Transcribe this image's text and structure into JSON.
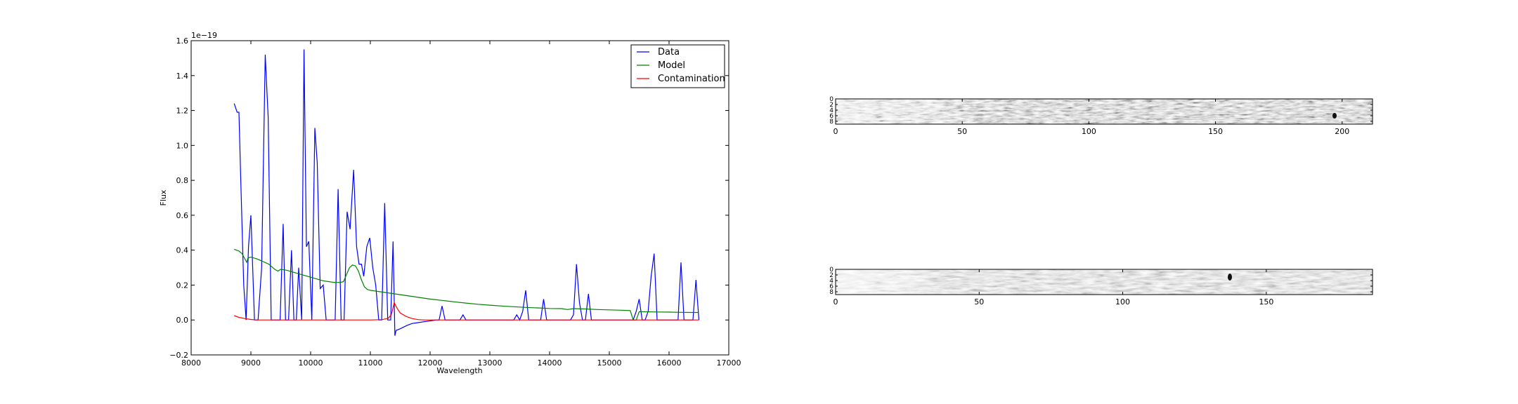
{
  "chart_data": [
    {
      "type": "line",
      "title": "",
      "xlabel": "Wavelength",
      "ylabel": "Flux",
      "y_offset_text": "1e−19",
      "xlim": [
        8000,
        17000
      ],
      "ylim": [
        -0.2,
        1.6
      ],
      "xticks": [
        8000,
        9000,
        10000,
        11000,
        12000,
        13000,
        14000,
        15000,
        16000,
        17000
      ],
      "xtick_labels": [
        "8000",
        "9000",
        "10000",
        "11000",
        "12000",
        "13000",
        "14000",
        "15000",
        "16000",
        "17000"
      ],
      "yticks": [
        -0.2,
        0.0,
        0.2,
        0.4,
        0.6,
        0.8,
        1.0,
        1.2,
        1.4,
        1.6
      ],
      "ytick_labels": [
        "−0.2",
        "0.0",
        "0.2",
        "0.4",
        "0.6",
        "0.8",
        "1.0",
        "1.2",
        "1.4",
        "1.6"
      ],
      "grid": false,
      "legend_placement": "top-right",
      "series": [
        {
          "name": "Data",
          "color": "#0000ff",
          "x": [
            8720,
            8770,
            8800,
            8830,
            8880,
            8920,
            8960,
            9000,
            9060,
            9120,
            9180,
            9240,
            9290,
            9340,
            9400,
            9450,
            9490,
            9540,
            9580,
            9630,
            9680,
            9720,
            9760,
            9800,
            9850,
            9890,
            9930,
            9970,
            10020,
            10070,
            10110,
            10160,
            10210,
            10260,
            10310,
            10360,
            10410,
            10460,
            10510,
            10560,
            10610,
            10660,
            10720,
            10770,
            10810,
            10850,
            10890,
            10940,
            10990,
            11040,
            11090,
            11140,
            11190,
            11240,
            11290,
            11340,
            11380,
            11410,
            11430,
            11500,
            11560,
            11620,
            11700,
            11800,
            11900,
            12000,
            12100,
            12150,
            12200,
            12250,
            12500,
            12550,
            12600,
            13000,
            13400,
            13450,
            13500,
            13550,
            13600,
            13650,
            13700,
            13850,
            13900,
            13950,
            14000,
            14300,
            14350,
            14400,
            14450,
            14500,
            14550,
            14600,
            14650,
            14700,
            15350,
            15400,
            15450,
            15500,
            15550,
            15600,
            15650,
            15700,
            15750,
            15800,
            15850,
            16150,
            16200,
            16250,
            16300,
            16400,
            16450,
            16500
          ],
          "y": [
            1.24,
            1.19,
            1.19,
            0.8,
            0.2,
            0.0,
            0.42,
            0.6,
            0.0,
            0.0,
            0.3,
            1.52,
            1.16,
            0.0,
            0.0,
            0.0,
            0.0,
            0.55,
            0.0,
            0.0,
            0.4,
            0.0,
            0.0,
            0.3,
            0.0,
            1.55,
            0.42,
            0.45,
            0.0,
            1.1,
            0.9,
            0.18,
            0.2,
            0.0,
            0.0,
            0.0,
            0.0,
            0.75,
            0.0,
            0.0,
            0.62,
            0.52,
            0.86,
            0.42,
            0.32,
            0.32,
            0.25,
            0.42,
            0.47,
            0.3,
            0.2,
            0.0,
            0.0,
            0.67,
            0.0,
            0.0,
            0.45,
            -0.09,
            -0.06,
            -0.05,
            -0.04,
            -0.03,
            -0.02,
            -0.015,
            -0.01,
            -0.005,
            0.0,
            0.0,
            0.08,
            0.0,
            0.0,
            0.03,
            0.0,
            0.0,
            0.0,
            0.03,
            0.0,
            0.05,
            0.17,
            0.0,
            0.0,
            0.0,
            0.12,
            0.0,
            0.0,
            0.0,
            0.0,
            0.03,
            0.32,
            0.1,
            0.0,
            0.0,
            0.15,
            0.0,
            0.0,
            0.0,
            0.05,
            0.12,
            0.0,
            0.0,
            0.05,
            0.25,
            0.38,
            0.0,
            0.0,
            0.0,
            0.33,
            0.0,
            0.0,
            0.0,
            0.23,
            0.0
          ]
        },
        {
          "name": "Model",
          "color": "#008000",
          "x": [
            8720,
            8800,
            8850,
            8900,
            8930,
            8950,
            9000,
            9100,
            9200,
            9300,
            9400,
            9450,
            9500,
            9600,
            9700,
            9800,
            9900,
            10000,
            10100,
            10200,
            10300,
            10400,
            10500,
            10550,
            10600,
            10650,
            10700,
            10750,
            10800,
            10850,
            10900,
            10950,
            11000,
            11100,
            11200,
            11300,
            11400,
            11500,
            11600,
            11800,
            12000,
            12200,
            12400,
            12600,
            12800,
            13000,
            13200,
            13400,
            13600,
            13800,
            14000,
            14200,
            14300,
            14400,
            14600,
            14800,
            15000,
            15200,
            15350,
            15400,
            15450,
            15500,
            15600,
            15800,
            16000,
            16200,
            16400,
            16500
          ],
          "y": [
            0.405,
            0.395,
            0.38,
            0.35,
            0.33,
            0.355,
            0.36,
            0.35,
            0.335,
            0.32,
            0.29,
            0.28,
            0.29,
            0.285,
            0.275,
            0.265,
            0.255,
            0.245,
            0.235,
            0.225,
            0.22,
            0.215,
            0.215,
            0.22,
            0.26,
            0.3,
            0.315,
            0.31,
            0.28,
            0.23,
            0.19,
            0.175,
            0.17,
            0.165,
            0.16,
            0.155,
            0.15,
            0.145,
            0.14,
            0.13,
            0.12,
            0.112,
            0.104,
            0.097,
            0.09,
            0.085,
            0.08,
            0.076,
            0.072,
            0.069,
            0.066,
            0.065,
            0.06,
            0.065,
            0.063,
            0.06,
            0.058,
            0.056,
            0.054,
            0.0,
            0.0,
            0.048,
            0.047,
            0.046,
            0.045,
            0.044,
            0.043,
            0.043
          ]
        },
        {
          "name": "Contamination",
          "color": "#ff0000",
          "x": [
            8720,
            8800,
            8900,
            9000,
            9100,
            10000,
            11000,
            11200,
            11300,
            11350,
            11380,
            11400,
            11420,
            11450,
            11500,
            11600,
            11700,
            11800,
            11900,
            12000,
            13000,
            14000,
            15000,
            16000,
            16500
          ],
          "y": [
            0.025,
            0.015,
            0.008,
            0.003,
            0.0,
            0.0,
            0.0,
            0.002,
            0.01,
            0.03,
            0.07,
            0.1,
            0.085,
            0.065,
            0.04,
            0.02,
            0.008,
            0.002,
            0.0,
            0.0,
            0.0,
            0.0,
            0.0,
            0.0,
            0.0
          ]
        }
      ]
    },
    {
      "type": "heatmap",
      "title": "",
      "cmap": "gray",
      "xlim": [
        0,
        212
      ],
      "ylim": [
        9,
        0
      ],
      "xticks": [
        0,
        50,
        100,
        150,
        200
      ],
      "xtick_labels": [
        "0",
        "50",
        "100",
        "150",
        "200"
      ],
      "yticks": [
        0,
        2,
        4,
        6,
        8
      ],
      "ytick_labels": [
        "0",
        "2",
        "4",
        "6",
        "8"
      ]
    },
    {
      "type": "heatmap",
      "title": "",
      "cmap": "gray",
      "xlim": [
        0,
        187
      ],
      "ylim": [
        9,
        0
      ],
      "xticks": [
        0,
        50,
        100,
        150
      ],
      "xtick_labels": [
        "0",
        "50",
        "100",
        "150"
      ],
      "yticks": [
        0,
        2,
        4,
        6,
        8
      ],
      "ytick_labels": [
        "0",
        "2",
        "4",
        "6",
        "8"
      ]
    }
  ]
}
